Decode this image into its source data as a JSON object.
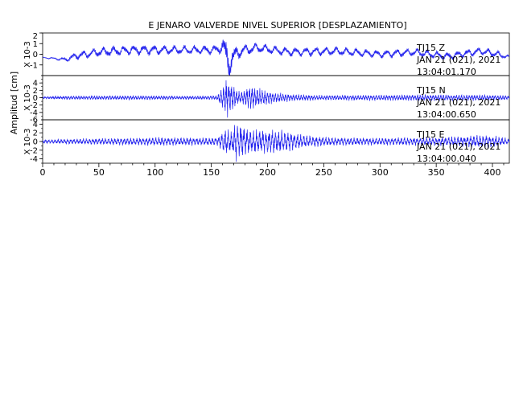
{
  "chart_data": {
    "type": "line",
    "title": "E JENARO VALVERDE NIVEL SUPERIOR [DESPLAZAMIENTO]",
    "ylabel": "Amplitud [cm]",
    "xlim": [
      0,
      415
    ],
    "x_ticks": [
      0,
      50,
      100,
      150,
      200,
      250,
      300,
      350,
      400
    ],
    "trace_color": "#2222ee",
    "panels": [
      {
        "station": "TJ15",
        "component": "Z",
        "date": "JAN 21 (021), 2021",
        "time": "13:04:01.170",
        "scale_label": "X 10-3",
        "ylim": [
          -2,
          2
        ],
        "y_ticks": [
          1,
          0,
          -1
        ],
        "y_tick_labels": [
          "1",
          "0",
          "-1"
        ],
        "top_tick_label": "2",
        "envelope": [
          [
            0,
            0.05
          ],
          [
            15,
            0.15
          ],
          [
            30,
            0.4
          ],
          [
            60,
            0.5
          ],
          [
            90,
            0.5
          ],
          [
            120,
            0.45
          ],
          [
            150,
            0.45
          ],
          [
            158,
            0.6
          ],
          [
            162,
            1.7
          ],
          [
            165,
            2.0
          ],
          [
            170,
            1.0
          ],
          [
            180,
            0.6
          ],
          [
            200,
            0.45
          ],
          [
            250,
            0.45
          ],
          [
            300,
            0.4
          ],
          [
            350,
            0.4
          ],
          [
            400,
            0.4
          ],
          [
            415,
            0.2
          ]
        ],
        "drift": [
          [
            0,
            -0.3
          ],
          [
            10,
            -0.4
          ],
          [
            20,
            -0.5
          ],
          [
            30,
            -0.15
          ],
          [
            50,
            0.2
          ],
          [
            80,
            0.4
          ],
          [
            120,
            0.4
          ],
          [
            155,
            0.4
          ],
          [
            160,
            0.8
          ],
          [
            164,
            -0.6
          ],
          [
            168,
            -0.5
          ],
          [
            175,
            0.3
          ],
          [
            190,
            0.6
          ],
          [
            220,
            0.2
          ],
          [
            260,
            0.3
          ],
          [
            300,
            0.0
          ],
          [
            330,
            0.2
          ],
          [
            360,
            -0.2
          ],
          [
            390,
            0.3
          ],
          [
            405,
            0.0
          ],
          [
            415,
            -0.3
          ]
        ],
        "dom_period": 9,
        "noise_freq": 1.1
      },
      {
        "station": "TJ15",
        "component": "N",
        "date": "JAN 21 (021), 2021",
        "time": "13:04:00.650",
        "scale_label": "X 10-3",
        "ylim": [
          -6,
          6
        ],
        "y_ticks": [
          4,
          2,
          0,
          -2,
          -4
        ],
        "y_tick_labels": [
          "4",
          "2",
          "0",
          "-2",
          "-4"
        ],
        "bottom_tick_label": "-6",
        "envelope": [
          [
            0,
            0.3
          ],
          [
            20,
            0.5
          ],
          [
            60,
            0.6
          ],
          [
            100,
            0.6
          ],
          [
            140,
            0.5
          ],
          [
            155,
            0.6
          ],
          [
            160,
            3.0
          ],
          [
            163,
            5.5
          ],
          [
            168,
            4.0
          ],
          [
            175,
            1.6
          ],
          [
            185,
            3.5
          ],
          [
            192,
            2.6
          ],
          [
            205,
            1.6
          ],
          [
            220,
            1.0
          ],
          [
            250,
            0.7
          ],
          [
            300,
            0.8
          ],
          [
            350,
            0.9
          ],
          [
            400,
            0.8
          ],
          [
            415,
            0.6
          ]
        ],
        "drift": [
          [
            0,
            0
          ],
          [
            415,
            0
          ]
        ],
        "dom_period": 2.3,
        "noise_freq": 2.0
      },
      {
        "station": "TJ15",
        "component": "E",
        "date": "JAN 21 (021), 2021",
        "time": "13:04:00.040",
        "scale_label": "X 10-3",
        "ylim": [
          -5,
          5
        ],
        "y_ticks": [
          4,
          2,
          0,
          -2,
          -4
        ],
        "y_tick_labels": [
          "4",
          "2",
          "0",
          "-2",
          "-4"
        ],
        "envelope": [
          [
            0,
            0.4
          ],
          [
            20,
            0.6
          ],
          [
            60,
            0.8
          ],
          [
            100,
            1.0
          ],
          [
            140,
            0.9
          ],
          [
            155,
            1.0
          ],
          [
            160,
            2.4
          ],
          [
            163,
            3.4
          ],
          [
            168,
            2.6
          ],
          [
            172,
            4.7
          ],
          [
            178,
            3.8
          ],
          [
            185,
            2.8
          ],
          [
            205,
            3.0
          ],
          [
            220,
            2.2
          ],
          [
            235,
            1.4
          ],
          [
            260,
            1.0
          ],
          [
            300,
            0.9
          ],
          [
            350,
            1.0
          ],
          [
            395,
            1.6
          ],
          [
            405,
            1.2
          ],
          [
            415,
            0.7
          ]
        ],
        "drift": [
          [
            0,
            0
          ],
          [
            415,
            0
          ]
        ],
        "dom_period": 2.8,
        "noise_freq": 1.6
      }
    ]
  }
}
